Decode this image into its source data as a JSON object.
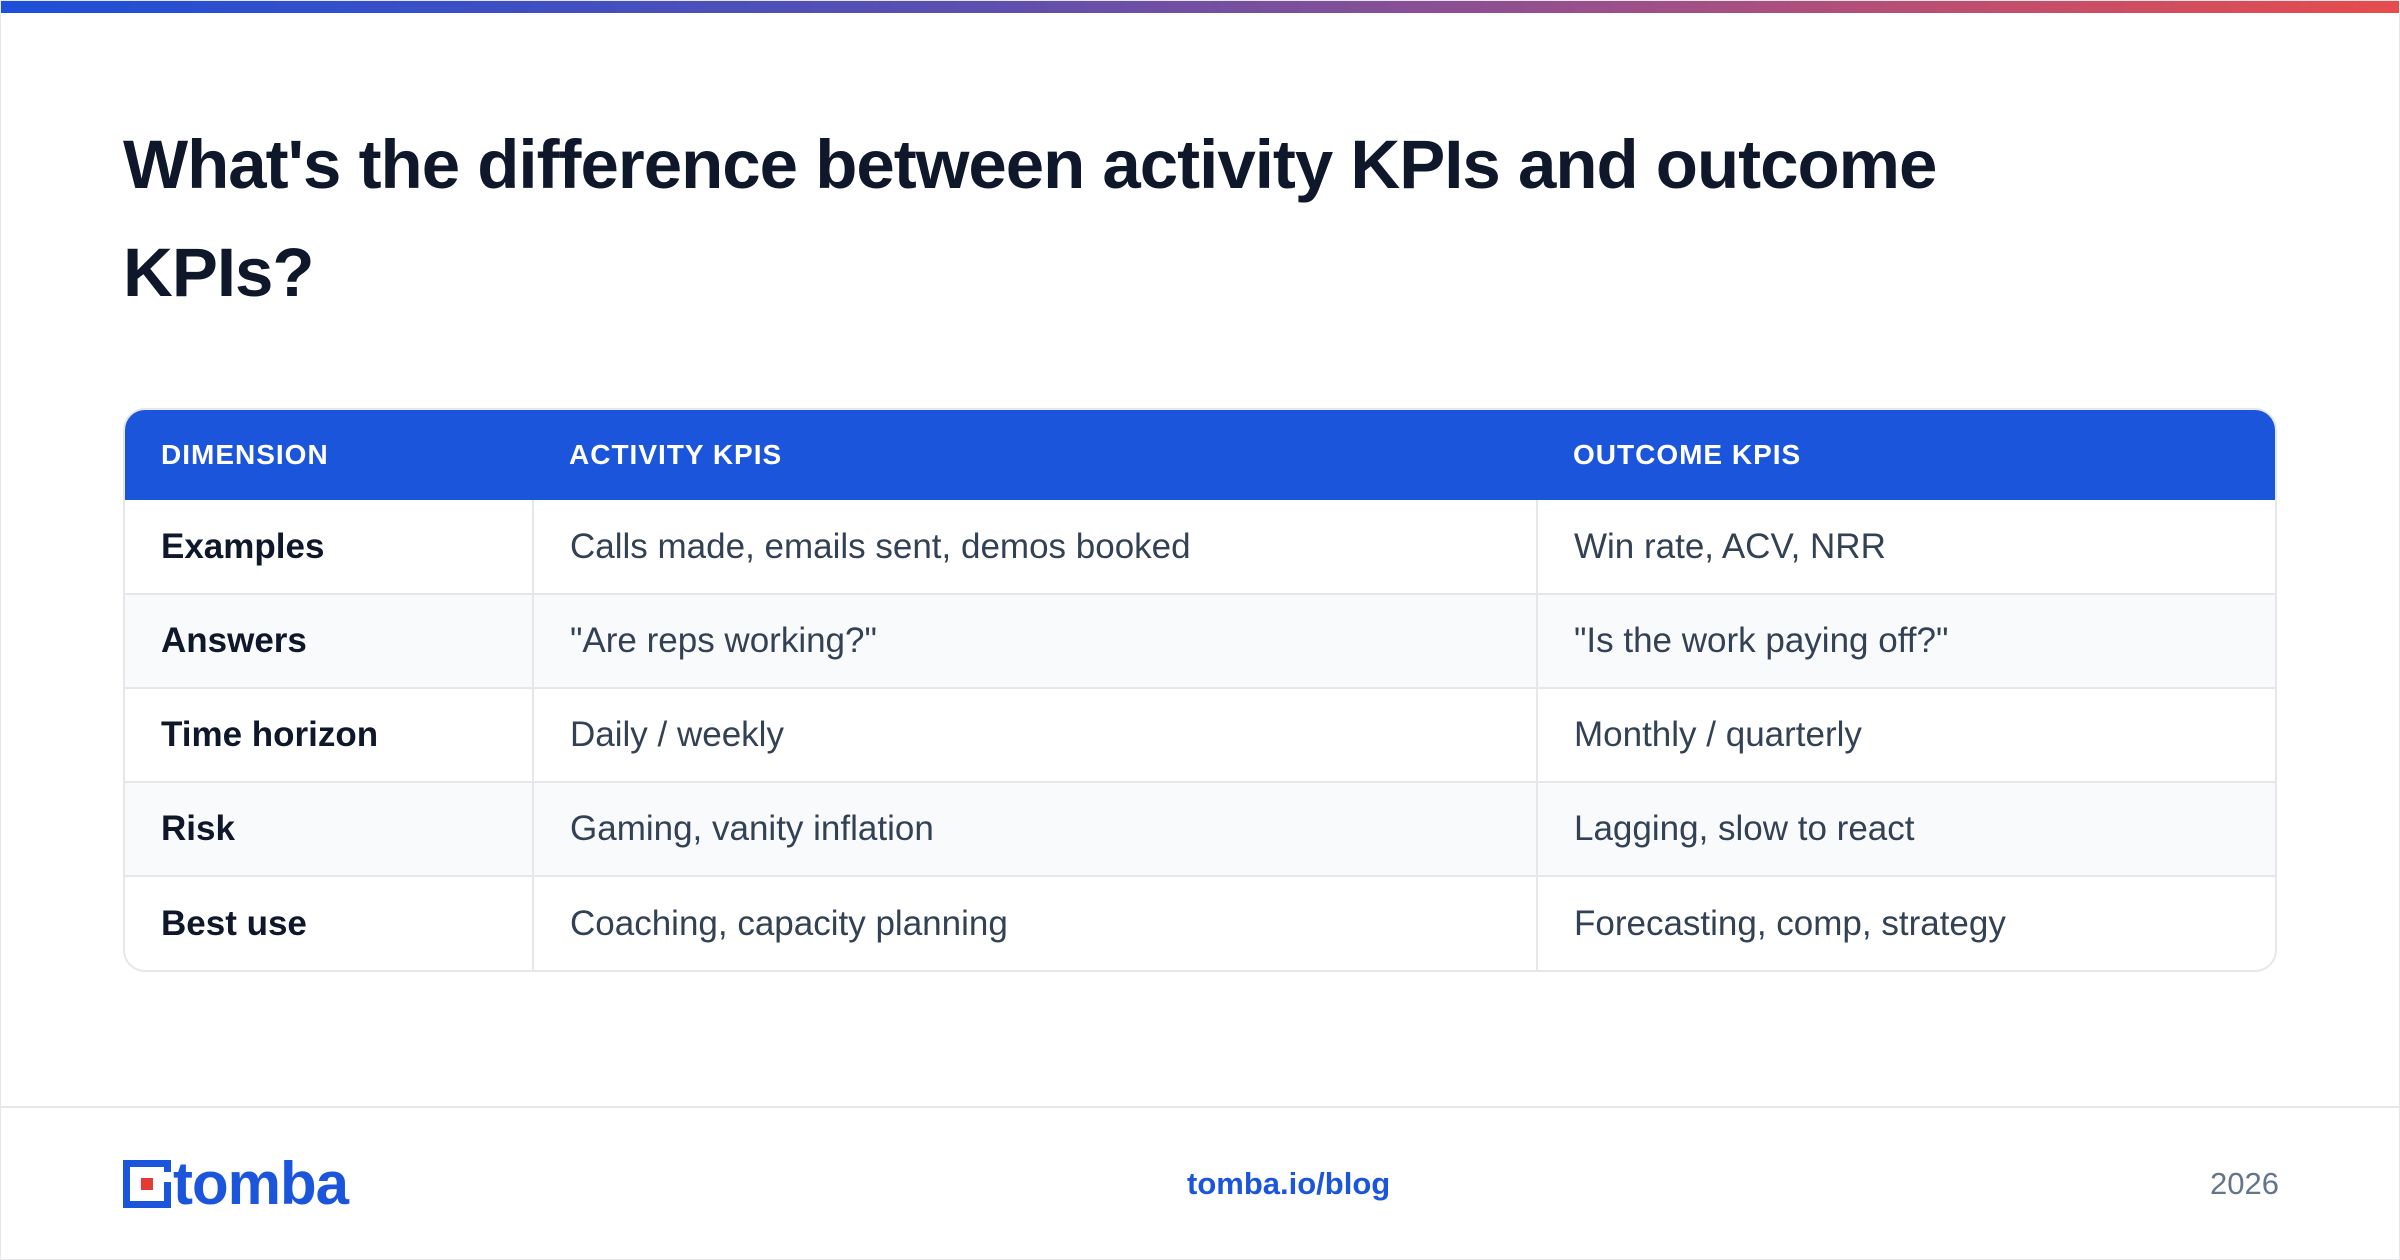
{
  "title": "What's the difference between activity KPIs and outcome KPIs?",
  "table": {
    "headers": [
      "DIMENSION",
      "ACTIVITY KPIS",
      "OUTCOME KPIS"
    ],
    "rows": [
      [
        "Examples",
        "Calls made, emails sent, demos booked",
        "Win rate, ACV, NRR"
      ],
      [
        "Answers",
        "\"Are reps working?\"",
        "\"Is the work paying off?\""
      ],
      [
        "Time horizon",
        "Daily / weekly",
        "Monthly / quarterly"
      ],
      [
        "Risk",
        "Gaming, vanity inflation",
        "Lagging, slow to react"
      ],
      [
        "Best use",
        "Coaching, capacity planning",
        "Forecasting, comp, strategy"
      ]
    ]
  },
  "footer": {
    "logo_text": "tomba",
    "link": "tomba.io/blog",
    "year": "2026"
  },
  "colors": {
    "accent": "#1b55dc",
    "logo_dot": "#e53935",
    "gradient_start": "#1d4fd8",
    "gradient_end": "#e74c4c"
  }
}
